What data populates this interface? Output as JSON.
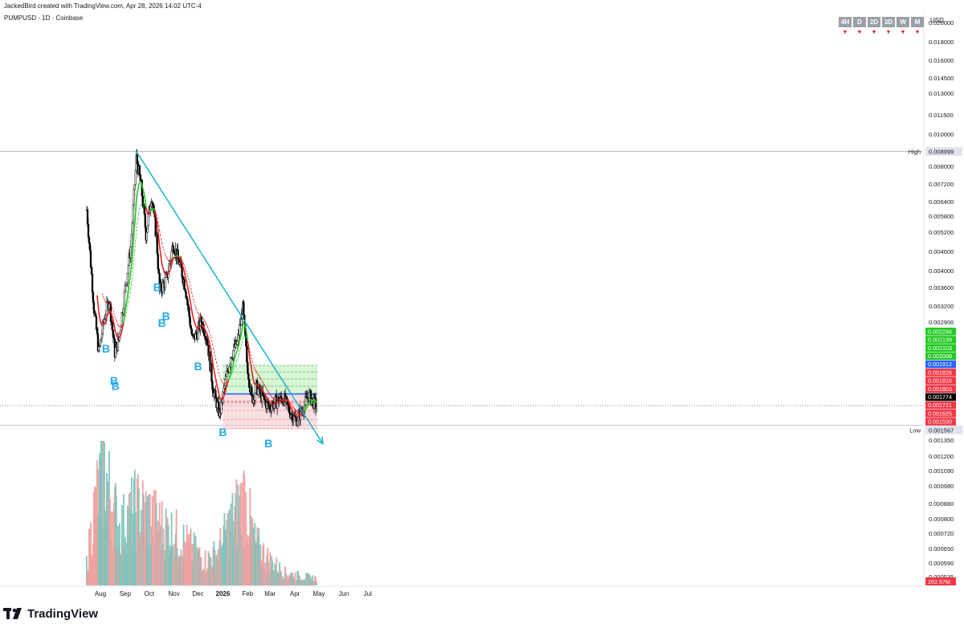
{
  "header": {
    "attribution": "JackedBird created with TradingView.com, Apr 28, 2026 14:02 UTC-4",
    "symbol_line": "PUMPUSD · 1D · Coinbase"
  },
  "timeframes": [
    "4H",
    "D",
    "2D",
    "3D",
    "W",
    "M"
  ],
  "timeframe_arrow": "▼",
  "currency": "USD",
  "branding": {
    "name": "TradingView"
  },
  "colors": {
    "trendline": "#1fb8cf",
    "ema_fast_up": "#1ec51e",
    "ema_fast_down": "#e51f1f",
    "ema_slow": "#e51f1f",
    "zone_green": "#b8ecb5",
    "zone_red": "#f5b9be",
    "entry_line": "#2962ff",
    "marker": "#22aaee",
    "vol_up": "#7ec5bd",
    "vol_down": "#f0a1a1"
  },
  "chart_data": {
    "type": "candlestick",
    "title": "PUMPUSD · 1D · Coinbase",
    "xlabel": "",
    "ylabel": "USD",
    "y_scale": "log",
    "ylim": [
      0.00052,
      0.0205
    ],
    "x_months": [
      "Aug",
      "Sep",
      "Oct",
      "Nov",
      "Dec",
      "2026",
      "Feb",
      "Mar",
      "Apr",
      "May",
      "Jun",
      "Jul"
    ],
    "y_ticks": [
      "0.020000",
      "0.018000",
      "0.016000",
      "0.014500",
      "0.013000",
      "0.011500",
      "0.010000",
      "0.008000",
      "0.007200",
      "0.006400",
      "0.005800",
      "0.005200",
      "0.004600",
      "0.004000",
      "0.003600",
      "0.003200",
      "0.002900",
      "0.001350",
      "0.001200",
      "0.001090",
      "0.000980",
      "0.000880",
      "0.000800",
      "0.000720",
      "0.000650",
      "0.000590",
      "0.000535"
    ],
    "price_labels": [
      {
        "value": "0.002294",
        "kind": "target"
      },
      {
        "value": "0.002199",
        "kind": "target"
      },
      {
        "value": "0.002103",
        "kind": "target"
      },
      {
        "value": "0.002008",
        "kind": "target"
      },
      {
        "value": "0.001912",
        "kind": "entry"
      },
      {
        "value": "0.001826",
        "kind": "stop"
      },
      {
        "value": "0.001816",
        "kind": "stop"
      },
      {
        "value": "0.001803",
        "kind": "stop"
      },
      {
        "value": "0.001774",
        "kind": "last"
      },
      {
        "value": "0.001721",
        "kind": "stop"
      },
      {
        "value": "0.001625",
        "kind": "stop"
      },
      {
        "value": "0.001530",
        "kind": "stop"
      }
    ],
    "high": {
      "label": "High",
      "value": "0.008999"
    },
    "low": {
      "label": "Low",
      "value": "0.001567"
    },
    "last_price": 0.001774,
    "volume_label": "262.57M",
    "markers": [
      {
        "label": "B",
        "date": "2025-08-08"
      },
      {
        "label": "B",
        "date": "2025-08-18"
      },
      {
        "label": "B",
        "date": "2025-08-20"
      },
      {
        "label": "B",
        "date": "2025-10-11"
      },
      {
        "label": "B",
        "date": "2025-10-17"
      },
      {
        "label": "B",
        "date": "2025-10-22"
      },
      {
        "label": "B",
        "date": "2025-12-01"
      },
      {
        "label": "B",
        "date": "2026-01-01"
      },
      {
        "label": "B",
        "date": "2026-02-27"
      }
    ],
    "trendline": {
      "from": {
        "date": "2025-09-15",
        "price": 0.009
      },
      "to": {
        "date": "2026-05-06",
        "price": 0.00139
      }
    },
    "zones": {
      "entry": 0.001912,
      "target_top": 0.002294,
      "stop_bottom": 0.00153,
      "start": "2026-01-01",
      "end": "2026-04-29"
    },
    "series": [
      {
        "name": "price",
        "start": "2025-07-15",
        "anchors": [
          [
            "2025-07-15",
            0.0062
          ],
          [
            "2025-07-20",
            0.0044
          ],
          [
            "2025-07-24",
            0.0033
          ],
          [
            "2025-07-30",
            0.0025
          ],
          [
            "2025-08-06",
            0.0031
          ],
          [
            "2025-08-12",
            0.0035
          ],
          [
            "2025-08-19",
            0.0025
          ],
          [
            "2025-08-24",
            0.0027
          ],
          [
            "2025-08-31",
            0.0036
          ],
          [
            "2025-09-08",
            0.0049
          ],
          [
            "2025-09-15",
            0.0086
          ],
          [
            "2025-09-21",
            0.0072
          ],
          [
            "2025-09-27",
            0.0053
          ],
          [
            "2025-10-04",
            0.0068
          ],
          [
            "2025-10-10",
            0.0052
          ],
          [
            "2025-10-14",
            0.0037
          ],
          [
            "2025-10-23",
            0.004
          ],
          [
            "2025-10-31",
            0.005
          ],
          [
            "2025-11-09",
            0.0043
          ],
          [
            "2025-11-15",
            0.0038
          ],
          [
            "2025-11-24",
            0.0027
          ],
          [
            "2025-11-29",
            0.0028
          ],
          [
            "2025-12-05",
            0.00305
          ],
          [
            "2025-12-12",
            0.00275
          ],
          [
            "2025-12-20",
            0.00195
          ],
          [
            "2025-12-28",
            0.00168
          ],
          [
            "2026-01-02",
            0.00195
          ],
          [
            "2026-01-11",
            0.00245
          ],
          [
            "2026-01-19",
            0.00265
          ],
          [
            "2026-01-26",
            0.0033
          ],
          [
            "2026-01-31",
            0.00235
          ],
          [
            "2026-02-06",
            0.00185
          ],
          [
            "2026-02-12",
            0.002
          ],
          [
            "2026-02-20",
            0.00186
          ],
          [
            "2026-02-27",
            0.00176
          ],
          [
            "2026-03-08",
            0.00182
          ],
          [
            "2026-03-18",
            0.00186
          ],
          [
            "2026-03-25",
            0.00172
          ],
          [
            "2026-04-02",
            0.00162
          ],
          [
            "2026-04-10",
            0.00172
          ],
          [
            "2026-04-18",
            0.0019
          ],
          [
            "2026-04-28",
            0.00177
          ]
        ]
      },
      {
        "name": "volume_M",
        "anchors": [
          [
            "2025-07-15",
            60
          ],
          [
            "2025-07-25",
            220
          ],
          [
            "2025-08-05",
            330
          ],
          [
            "2025-08-15",
            240
          ],
          [
            "2025-08-25",
            160
          ],
          [
            "2025-09-15",
            220
          ],
          [
            "2025-10-01",
            200
          ],
          [
            "2025-10-15",
            170
          ],
          [
            "2025-11-05",
            140
          ],
          [
            "2025-11-20",
            110
          ],
          [
            "2025-12-10",
            70
          ],
          [
            "2025-12-25",
            90
          ],
          [
            "2026-01-10",
            170
          ],
          [
            "2026-01-28",
            250
          ],
          [
            "2026-02-10",
            120
          ],
          [
            "2026-02-28",
            70
          ],
          [
            "2026-03-20",
            35
          ],
          [
            "2026-04-10",
            25
          ],
          [
            "2026-04-28",
            20
          ]
        ]
      }
    ]
  }
}
